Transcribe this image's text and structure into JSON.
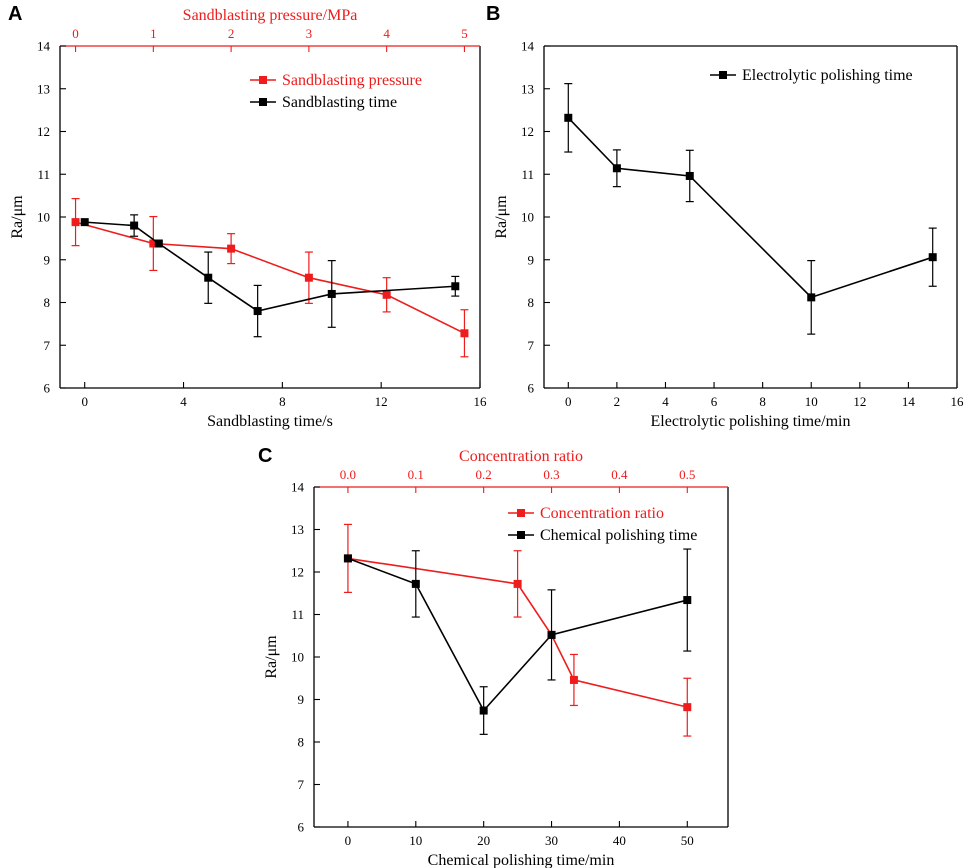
{
  "figure": {
    "panels": [
      "A",
      "B",
      "C"
    ]
  },
  "colors": {
    "red": "#ee1c1c",
    "black": "#000000"
  },
  "chart_data": [
    {
      "id": "A",
      "type": "line",
      "panel_label": "A",
      "xlabel": "Sandblasting time/s",
      "ylabel": "Ra/μm",
      "xlim": [
        -1,
        16
      ],
      "ylim": [
        6,
        14
      ],
      "xticks": [
        0,
        4,
        8,
        12,
        16
      ],
      "yticks": [
        6,
        7,
        8,
        9,
        10,
        11,
        12,
        13,
        14
      ],
      "top_axis": {
        "label": "Sandblasting pressure/MPa",
        "xlim": [
          -0.2,
          5.2
        ],
        "ticks": [
          0,
          1,
          2,
          3,
          4,
          5
        ],
        "color": "#ee1c1c"
      },
      "legend_position": "top-right",
      "series": [
        {
          "name": "Sandblasting pressure",
          "color": "#ee1c1c",
          "axis": "top",
          "x": [
            0,
            1,
            2,
            3,
            4,
            5
          ],
          "y": [
            9.88,
            9.38,
            9.26,
            8.58,
            8.18,
            7.28
          ],
          "err": [
            0.55,
            0.63,
            0.35,
            0.6,
            0.4,
            0.55
          ]
        },
        {
          "name": "Sandblasting time",
          "color": "#000000",
          "axis": "bottom",
          "x": [
            0,
            2,
            3,
            5,
            7,
            10,
            15
          ],
          "y": [
            9.88,
            9.8,
            9.38,
            8.58,
            7.8,
            8.2,
            8.38
          ],
          "err": [
            0,
            0.25,
            0,
            0.6,
            0.6,
            0.78,
            0.23
          ]
        }
      ]
    },
    {
      "id": "B",
      "type": "line",
      "panel_label": "B",
      "xlabel": "Electrolytic polishing time/min",
      "ylabel": "Ra/μm",
      "xlim": [
        -1,
        16
      ],
      "ylim": [
        6,
        14
      ],
      "xticks": [
        0,
        2,
        4,
        6,
        8,
        10,
        12,
        14,
        16
      ],
      "yticks": [
        6,
        7,
        8,
        9,
        10,
        11,
        12,
        13,
        14
      ],
      "legend_position": "top-right",
      "series": [
        {
          "name": "Electrolytic polishing time",
          "color": "#000000",
          "axis": "bottom",
          "x": [
            0,
            2,
            5,
            10,
            15
          ],
          "y": [
            12.32,
            11.14,
            10.96,
            8.12,
            9.06
          ],
          "err": [
            0.8,
            0.43,
            0.6,
            0.86,
            0.68
          ]
        }
      ]
    },
    {
      "id": "C",
      "type": "line",
      "panel_label": "C",
      "xlabel": "Chemical polishing time/min",
      "ylabel": "Ra/μm",
      "xlim": [
        -5,
        56
      ],
      "ylim": [
        6,
        14
      ],
      "xticks": [
        0,
        10,
        20,
        30,
        40,
        50
      ],
      "yticks": [
        6,
        7,
        8,
        9,
        10,
        11,
        12,
        13,
        14
      ],
      "top_axis": {
        "label": "Concentration ratio",
        "xlim": [
          -0.05,
          0.56
        ],
        "ticks": [
          0.0,
          0.1,
          0.2,
          0.3,
          0.4,
          0.5
        ],
        "tick_labels": [
          "0.0",
          "0.1",
          "0.2",
          "0.3",
          "0.4",
          "0.5"
        ],
        "color": "#ee1c1c"
      },
      "legend_position": "top-right",
      "series": [
        {
          "name": "Concentration ratio",
          "color": "#ee1c1c",
          "axis": "top",
          "x": [
            0,
            0.25,
            0.3,
            0.333,
            0.5
          ],
          "y": [
            12.32,
            11.72,
            10.52,
            9.46,
            8.82
          ],
          "err": [
            0.8,
            0.78,
            0,
            0.6,
            0.68
          ]
        },
        {
          "name": "Chemical polishing time",
          "color": "#000000",
          "axis": "bottom",
          "x": [
            0,
            10,
            20,
            30,
            50
          ],
          "y": [
            12.32,
            11.72,
            8.74,
            10.52,
            11.34
          ],
          "err": [
            0,
            0.78,
            0.56,
            1.06,
            1.2
          ]
        }
      ]
    }
  ]
}
